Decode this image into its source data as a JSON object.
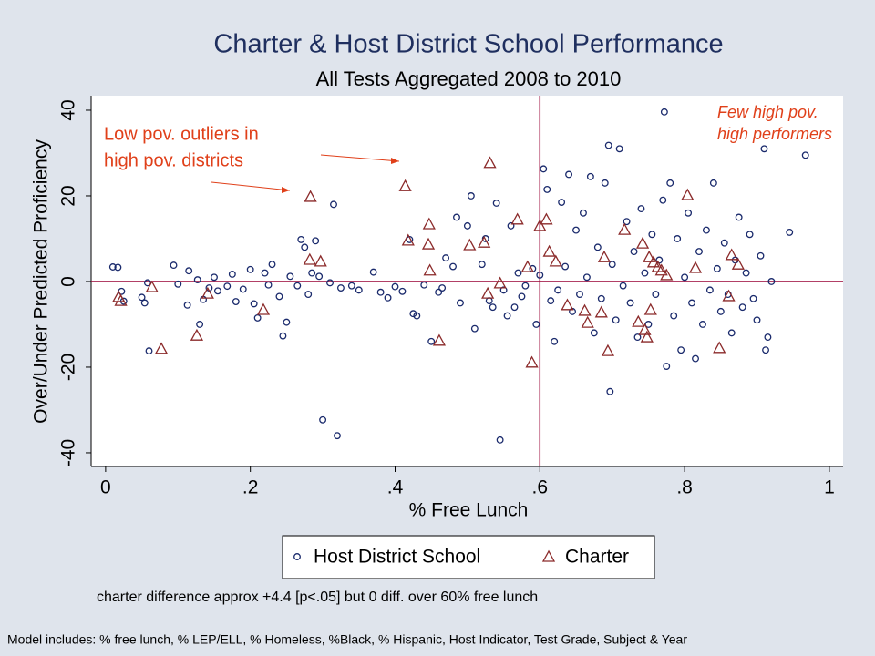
{
  "chart_data": {
    "type": "scatter",
    "title": "Charter & Host District School Performance",
    "subtitle": "All Tests Aggregated 2008 to 2010",
    "xlabel": "% Free Lunch",
    "ylabel": "Over/Under Predicted Proficiency",
    "xlim": [
      -0.02,
      1.019
    ],
    "ylim": [
      -43.2,
      43.4
    ],
    "xticks": [
      0,
      {
        "value": 0.2,
        "label": ".2"
      },
      {
        "value": 0.4,
        "label": ".4"
      },
      {
        "value": 0.6,
        "label": ".6"
      },
      {
        "value": 0.8,
        "label": ".8"
      },
      1
    ],
    "yticks": [
      -40,
      -20,
      0,
      20,
      40
    ],
    "hline": 0,
    "vline": 0.6,
    "line_color": "#990033",
    "series": [
      {
        "name": "Host District School",
        "color": "#1a2a6c",
        "marker": "circle",
        "x": [
          0.01,
          0.017,
          0.022,
          0.025,
          0.05,
          0.054,
          0.058,
          0.06,
          0.094,
          0.1,
          0.113,
          0.115,
          0.127,
          0.13,
          0.135,
          0.143,
          0.15,
          0.155,
          0.168,
          0.175,
          0.18,
          0.19,
          0.2,
          0.205,
          0.21,
          0.22,
          0.225,
          0.23,
          0.24,
          0.245,
          0.25,
          0.255,
          0.265,
          0.27,
          0.275,
          0.28,
          0.285,
          0.29,
          0.295,
          0.3,
          0.31,
          0.315,
          0.32,
          0.325,
          0.34,
          0.35,
          0.37,
          0.38,
          0.39,
          0.4,
          0.41,
          0.42,
          0.425,
          0.43,
          0.44,
          0.45,
          0.46,
          0.465,
          0.47,
          0.48,
          0.485,
          0.49,
          0.5,
          0.505,
          0.51,
          0.52,
          0.525,
          0.53,
          0.535,
          0.54,
          0.545,
          0.55,
          0.555,
          0.56,
          0.565,
          0.57,
          0.575,
          0.58,
          0.59,
          0.595,
          0.6,
          0.605,
          0.61,
          0.615,
          0.62,
          0.625,
          0.63,
          0.635,
          0.64,
          0.645,
          0.65,
          0.655,
          0.66,
          0.665,
          0.67,
          0.675,
          0.68,
          0.685,
          0.69,
          0.695,
          0.697,
          0.7,
          0.705,
          0.71,
          0.715,
          0.72,
          0.725,
          0.73,
          0.735,
          0.74,
          0.745,
          0.75,
          0.755,
          0.76,
          0.765,
          0.77,
          0.772,
          0.775,
          0.78,
          0.785,
          0.79,
          0.795,
          0.8,
          0.805,
          0.81,
          0.815,
          0.82,
          0.825,
          0.83,
          0.835,
          0.84,
          0.845,
          0.85,
          0.855,
          0.86,
          0.865,
          0.87,
          0.875,
          0.88,
          0.885,
          0.89,
          0.895,
          0.9,
          0.905,
          0.91,
          0.912,
          0.915,
          0.92,
          0.945,
          0.967
        ],
        "y": [
          3.4,
          3.3,
          -2.3,
          -4.6,
          -3.7,
          -5,
          -0.3,
          -16.2,
          3.8,
          -0.6,
          -5.5,
          2.5,
          0.4,
          -10,
          -4.2,
          -1.5,
          1,
          -2.2,
          -1.1,
          1.7,
          -4.7,
          -1.8,
          2.8,
          -5.2,
          -8.5,
          2,
          -0.8,
          4,
          -3.5,
          -12.7,
          -9.5,
          1.2,
          -1,
          9.8,
          8,
          -3,
          2,
          9.5,
          1.2,
          -32.3,
          -0.3,
          18,
          -36,
          -1.5,
          -1,
          -2,
          2.2,
          -2.5,
          -3.8,
          -1.2,
          -2.3,
          9.8,
          -7.5,
          -8,
          -0.8,
          -14,
          -2.5,
          -1.5,
          5.5,
          3.5,
          15,
          -5,
          13,
          20,
          -11,
          4,
          10,
          -4.5,
          -6,
          18.3,
          -37,
          -2,
          -8,
          13,
          -6,
          2,
          -3.5,
          -1,
          3,
          -10,
          1.5,
          26.3,
          21.5,
          -4.5,
          -14,
          -2,
          18.5,
          3.5,
          25,
          -7,
          12,
          -3,
          16,
          1,
          24.5,
          -12,
          8,
          -4,
          23,
          31.8,
          -25.7,
          4,
          -9,
          31,
          -1,
          14,
          -5,
          7,
          -13,
          17,
          2,
          -10,
          11,
          -3,
          5,
          19,
          39.6,
          -19.8,
          23,
          -8,
          10,
          -16,
          1,
          16,
          -5,
          -18,
          7,
          -10,
          12,
          -2,
          23,
          3,
          -7,
          9,
          -3,
          -12,
          5,
          15,
          -6,
          2,
          11,
          -4,
          -9,
          6,
          31,
          -16,
          -13,
          0,
          11.5,
          29.5
        ]
      },
      {
        "name": "Charter",
        "color": "#8b2a2a",
        "marker": "triangle",
        "x": [
          0.018,
          0.021,
          0.064,
          0.077,
          0.126,
          0.141,
          0.218,
          0.283,
          0.282,
          0.297,
          0.414,
          0.418,
          0.447,
          0.446,
          0.448,
          0.461,
          0.503,
          0.523,
          0.531,
          0.528,
          0.545,
          0.569,
          0.583,
          0.589,
          0.6,
          0.609,
          0.613,
          0.622,
          0.638,
          0.662,
          0.666,
          0.685,
          0.689,
          0.694,
          0.717,
          0.736,
          0.742,
          0.745,
          0.748,
          0.751,
          0.753,
          0.757,
          0.763,
          0.768,
          0.775,
          0.804,
          0.815,
          0.848,
          0.861,
          0.865,
          0.874
        ],
        "y": [
          -3.6,
          -4.5,
          -1.3,
          -15.7,
          -12.6,
          -2.8,
          -6.6,
          19.8,
          5.1,
          4.7,
          22.3,
          9.6,
          13.4,
          8.7,
          2.6,
          -13.8,
          8.5,
          9.1,
          27.7,
          -2.8,
          -0.4,
          14.5,
          3.4,
          -18.9,
          13,
          14.5,
          7,
          4.7,
          -5.5,
          -6.8,
          -9.6,
          -7.2,
          5.7,
          -16.2,
          12.1,
          -9.4,
          8.9,
          -11.3,
          -13,
          5.7,
          -6.6,
          4.5,
          3.4,
          2.6,
          1.5,
          20.2,
          3.2,
          -15.5,
          -3.4,
          6.2,
          4
        ]
      }
    ],
    "annotations": [
      {
        "lines": [
          "Low pov. outliers in",
          "high pov. districts"
        ],
        "color": "#e0401a"
      },
      {
        "lines": [
          "Few high pov.",
          "high performers"
        ],
        "color": "#e0401a"
      }
    ],
    "note": "charter difference approx +4.4 [p<.05] but 0 diff. over 60% free lunch",
    "footnote": "Model includes: % free lunch, % LEP/ELL, % Homeless, %Black, % Hispanic, Host Indicator, Test Grade, Subject & Year"
  }
}
